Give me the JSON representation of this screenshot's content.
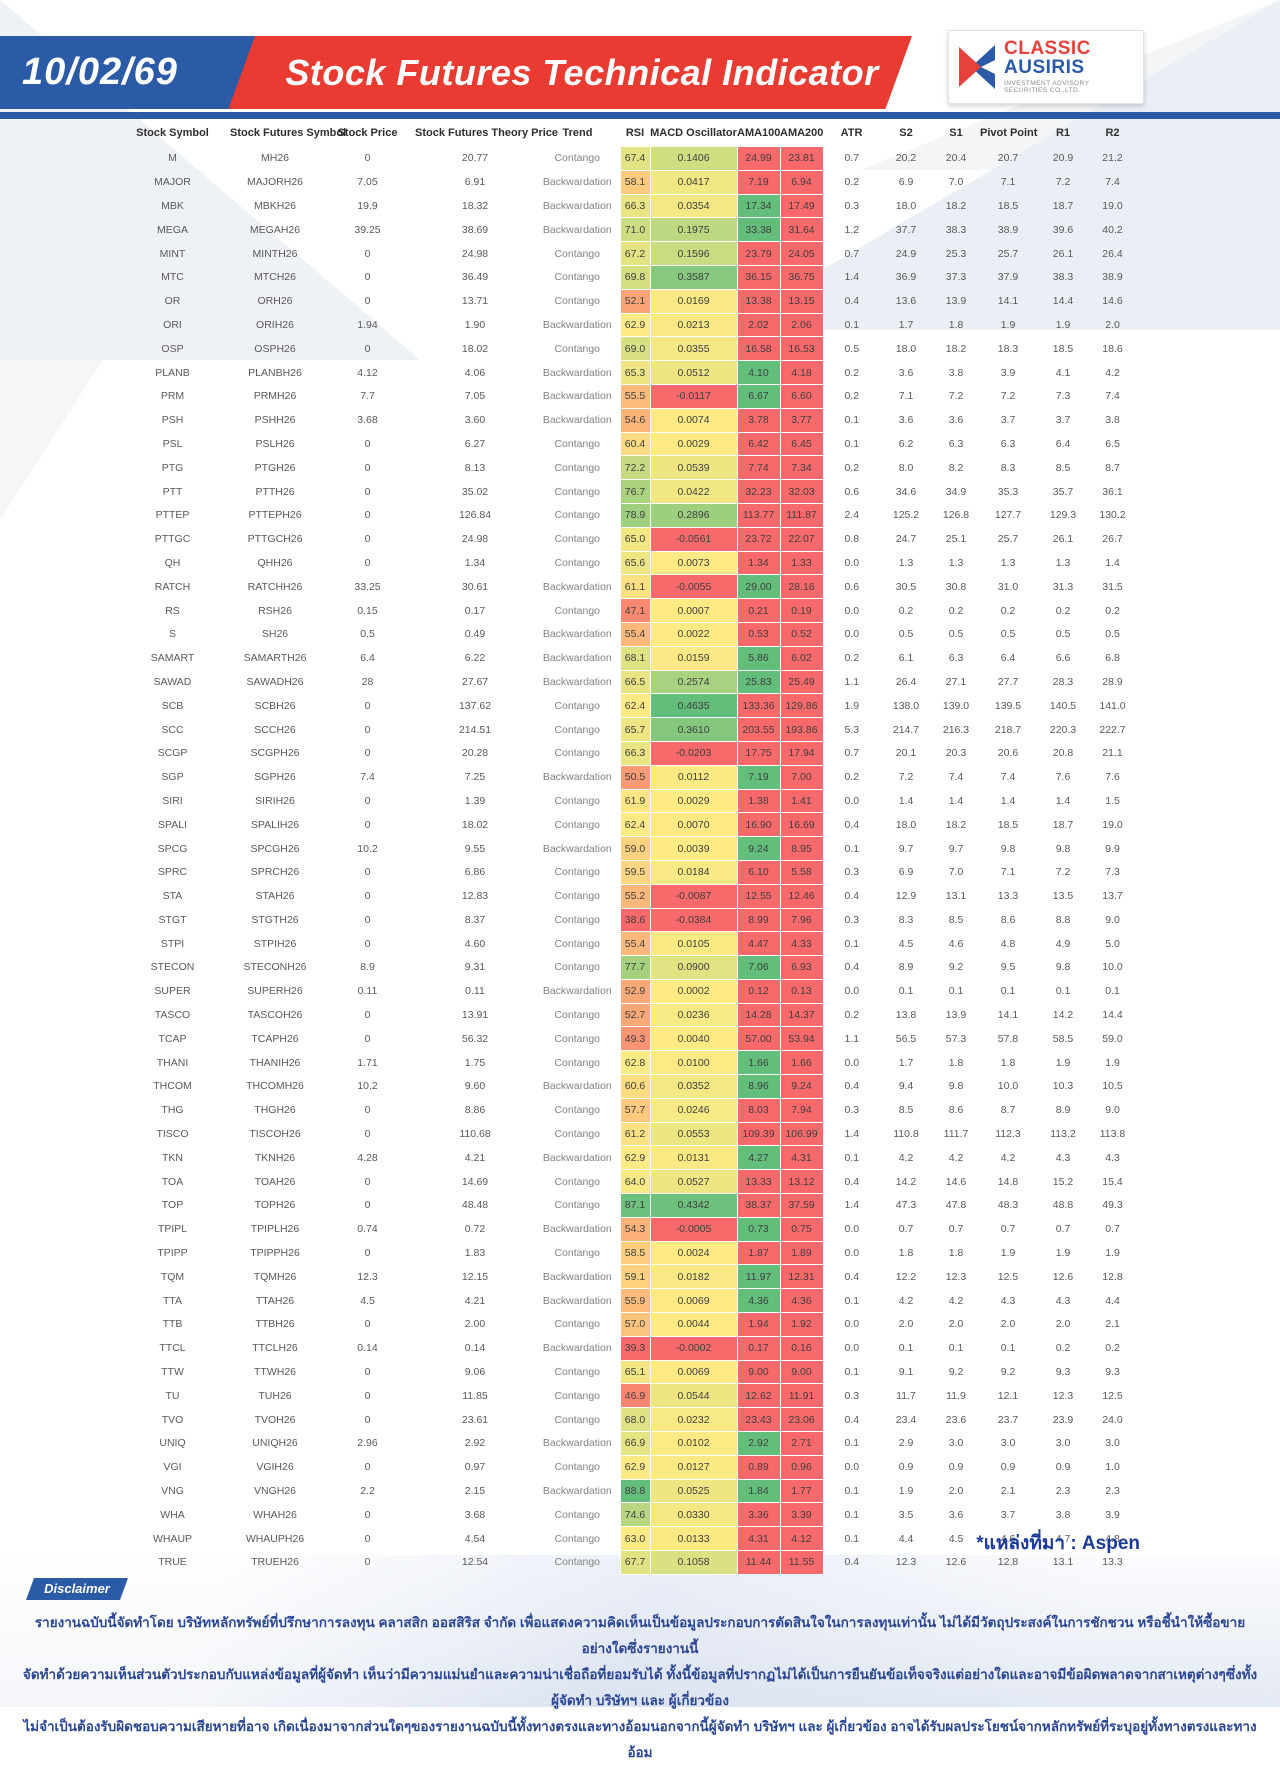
{
  "header": {
    "date": "10/02/69",
    "title": "Stock Futures Technical Indicator",
    "logo": {
      "brand_primary": "CLASSIC",
      "brand_secondary": "AUSIRIS",
      "caption": "INVESTMENT ADVISORY SECURITIES CO.,LTD."
    }
  },
  "colors": {
    "header_blue": "#2B5AA7",
    "header_red": "#E93B32",
    "scale_red": "#F8696B",
    "scale_yellow": "#FFEB84",
    "scale_green": "#63BE7B",
    "note_blue": "#1B3A99",
    "disclaimer_blue": "#2B4693"
  },
  "table": {
    "columns": [
      "Stock Symbol",
      "Stock Futures Symbol",
      "Stock Price",
      "Stock Futures Theory Price",
      "Trend",
      "RSI",
      "MACD Oscillator",
      "AMA100",
      "AMA200",
      "ATR",
      "S2",
      "S1",
      "Pivot Point",
      "R1",
      "R2"
    ],
    "rows": [
      [
        "M",
        "MH26",
        "0",
        "20.77",
        "Contango",
        "67.4",
        "0.1406",
        "24.99",
        "23.81",
        "0.7",
        "20.2",
        "20.4",
        "20.7",
        "20.9",
        "21.2",
        "rr"
      ],
      [
        "MAJOR",
        "MAJORH26",
        "7.05",
        "6.91",
        "Backwardation",
        "58.1",
        "0.0417",
        "7.19",
        "6.94",
        "0.2",
        "6.9",
        "7.0",
        "7.1",
        "7.2",
        "7.4",
        "rr"
      ],
      [
        "MBK",
        "MBKH26",
        "19.9",
        "18.32",
        "Backwardation",
        "66.3",
        "0.0354",
        "17.34",
        "17.49",
        "0.3",
        "18.0",
        "18.2",
        "18.5",
        "18.7",
        "19.0",
        "gr"
      ],
      [
        "MEGA",
        "MEGAH26",
        "39.25",
        "38.69",
        "Backwardation",
        "71.0",
        "0.1975",
        "33.38",
        "31.64",
        "1.2",
        "37.7",
        "38.3",
        "38.9",
        "39.6",
        "40.2",
        "gr"
      ],
      [
        "MINT",
        "MINTH26",
        "0",
        "24.98",
        "Contango",
        "67.2",
        "0.1596",
        "23.79",
        "24.05",
        "0.7",
        "24.9",
        "25.3",
        "25.7",
        "26.1",
        "26.4",
        "rr"
      ],
      [
        "MTC",
        "MTCH26",
        "0",
        "36.49",
        "Contango",
        "69.8",
        "0.3587",
        "36.15",
        "36.75",
        "1.4",
        "36.9",
        "37.3",
        "37.9",
        "38.3",
        "38.9",
        "rr"
      ],
      [
        "OR",
        "ORH26",
        "0",
        "13.71",
        "Contango",
        "52.1",
        "0.0169",
        "13.38",
        "13.15",
        "0.4",
        "13.6",
        "13.9",
        "14.1",
        "14.4",
        "14.6",
        "rr"
      ],
      [
        "ORI",
        "ORIH26",
        "1.94",
        "1.90",
        "Backwardation",
        "62.9",
        "0.0213",
        "2.02",
        "2.06",
        "0.1",
        "1.7",
        "1.8",
        "1.9",
        "1.9",
        "2.0",
        "rr"
      ],
      [
        "OSP",
        "OSPH26",
        "0",
        "18.02",
        "Contango",
        "69.0",
        "0.0355",
        "16.58",
        "16.53",
        "0.5",
        "18.0",
        "18.2",
        "18.3",
        "18.5",
        "18.6",
        "rr"
      ],
      [
        "PLANB",
        "PLANBH26",
        "4.12",
        "4.06",
        "Backwardation",
        "65.3",
        "0.0512",
        "4.10",
        "4.18",
        "0.2",
        "3.6",
        "3.8",
        "3.9",
        "4.1",
        "4.2",
        "gr"
      ],
      [
        "PRM",
        "PRMH26",
        "7.7",
        "7.05",
        "Backwardation",
        "55.5",
        "-0.0117",
        "6.67",
        "6.60",
        "0.2",
        "7.1",
        "7.2",
        "7.2",
        "7.3",
        "7.4",
        "gr"
      ],
      [
        "PSH",
        "PSHH26",
        "3.68",
        "3.60",
        "Backwardation",
        "54.6",
        "0.0074",
        "3.78",
        "3.77",
        "0.1",
        "3.6",
        "3.6",
        "3.7",
        "3.7",
        "3.8",
        "rr"
      ],
      [
        "PSL",
        "PSLH26",
        "0",
        "6.27",
        "Contango",
        "60.4",
        "0.0029",
        "6.42",
        "6.45",
        "0.1",
        "6.2",
        "6.3",
        "6.3",
        "6.4",
        "6.5",
        "rr"
      ],
      [
        "PTG",
        "PTGH26",
        "0",
        "8.13",
        "Contango",
        "72.2",
        "0.0539",
        "7.74",
        "7.34",
        "0.2",
        "8.0",
        "8.2",
        "8.3",
        "8.5",
        "8.7",
        "rr"
      ],
      [
        "PTT",
        "PTTH26",
        "0",
        "35.02",
        "Contango",
        "76.7",
        "0.0422",
        "32.23",
        "32.03",
        "0.6",
        "34.6",
        "34.9",
        "35.3",
        "35.7",
        "36.1",
        "rr"
      ],
      [
        "PTTEP",
        "PTTEPH26",
        "0",
        "126.84",
        "Contango",
        "78.9",
        "0.2896",
        "113.77",
        "111.87",
        "2.4",
        "125.2",
        "126.8",
        "127.7",
        "129.3",
        "130.2",
        "rr"
      ],
      [
        "PTTGC",
        "PTTGCH26",
        "0",
        "24.98",
        "Contango",
        "65.0",
        "-0.0561",
        "23.72",
        "22.07",
        "0.8",
        "24.7",
        "25.1",
        "25.7",
        "26.1",
        "26.7",
        "rr"
      ],
      [
        "QH",
        "QHH26",
        "0",
        "1.34",
        "Contango",
        "65.6",
        "0.0073",
        "1.34",
        "1.33",
        "0.0",
        "1.3",
        "1.3",
        "1.3",
        "1.3",
        "1.4",
        "rr"
      ],
      [
        "RATCH",
        "RATCHH26",
        "33.25",
        "30.61",
        "Backwardation",
        "61.1",
        "-0.0055",
        "29.00",
        "28.16",
        "0.6",
        "30.5",
        "30.8",
        "31.0",
        "31.3",
        "31.5",
        "gr"
      ],
      [
        "RS",
        "RSH26",
        "0.15",
        "0.17",
        "Contango",
        "47.1",
        "0.0007",
        "0.21",
        "0.19",
        "0.0",
        "0.2",
        "0.2",
        "0.2",
        "0.2",
        "0.2",
        "rr"
      ],
      [
        "S",
        "SH26",
        "0.5",
        "0.49",
        "Backwardation",
        "55.4",
        "0.0022",
        "0.53",
        "0.52",
        "0.0",
        "0.5",
        "0.5",
        "0.5",
        "0.5",
        "0.5",
        "rr"
      ],
      [
        "SAMART",
        "SAMARTH26",
        "6.4",
        "6.22",
        "Backwardation",
        "68.1",
        "0.0159",
        "5.86",
        "6.02",
        "0.2",
        "6.1",
        "6.3",
        "6.4",
        "6.6",
        "6.8",
        "gr"
      ],
      [
        "SAWAD",
        "SAWADH26",
        "28",
        "27.67",
        "Backwardation",
        "66.5",
        "0.2574",
        "25.83",
        "25.49",
        "1.1",
        "26.4",
        "27.1",
        "27.7",
        "28.3",
        "28.9",
        "gr"
      ],
      [
        "SCB",
        "SCBH26",
        "0",
        "137.62",
        "Contango",
        "62.4",
        "0.4635",
        "133.36",
        "129.86",
        "1.9",
        "138.0",
        "139.0",
        "139.5",
        "140.5",
        "141.0",
        "rr"
      ],
      [
        "SCC",
        "SCCH26",
        "0",
        "214.51",
        "Contango",
        "65.7",
        "0.3610",
        "203.55",
        "193.86",
        "5.3",
        "214.7",
        "216.3",
        "218.7",
        "220.3",
        "222.7",
        "rr"
      ],
      [
        "SCGP",
        "SCGPH26",
        "0",
        "20.28",
        "Contango",
        "66.3",
        "-0.0203",
        "17.75",
        "17.94",
        "0.7",
        "20.1",
        "20.3",
        "20.6",
        "20.8",
        "21.1",
        "rr"
      ],
      [
        "SGP",
        "SGPH26",
        "7.4",
        "7.25",
        "Backwardation",
        "50.5",
        "0.0112",
        "7.19",
        "7.00",
        "0.2",
        "7.2",
        "7.4",
        "7.4",
        "7.6",
        "7.6",
        "gr"
      ],
      [
        "SIRI",
        "SIRIH26",
        "0",
        "1.39",
        "Contango",
        "61.9",
        "0.0029",
        "1.38",
        "1.41",
        "0.0",
        "1.4",
        "1.4",
        "1.4",
        "1.4",
        "1.5",
        "rr"
      ],
      [
        "SPALI",
        "SPALIH26",
        "0",
        "18.02",
        "Contango",
        "62.4",
        "0.0070",
        "16.90",
        "16.69",
        "0.4",
        "18.0",
        "18.2",
        "18.5",
        "18.7",
        "19.0",
        "rr"
      ],
      [
        "SPCG",
        "SPCGH26",
        "10.2",
        "9.55",
        "Backwardation",
        "59.0",
        "0.0039",
        "9.24",
        "8.95",
        "0.1",
        "9.7",
        "9.7",
        "9.8",
        "9.8",
        "9.9",
        "gr"
      ],
      [
        "SPRC",
        "SPRCH26",
        "0",
        "6.86",
        "Contango",
        "59.5",
        "0.0184",
        "6.10",
        "5.58",
        "0.3",
        "6.9",
        "7.0",
        "7.1",
        "7.2",
        "7.3",
        "rr"
      ],
      [
        "STA",
        "STAH26",
        "0",
        "12.83",
        "Contango",
        "55.2",
        "-0.0087",
        "12.55",
        "12.46",
        "0.4",
        "12.9",
        "13.1",
        "13.3",
        "13.5",
        "13.7",
        "rr"
      ],
      [
        "STGT",
        "STGTH26",
        "0",
        "8.37",
        "Contango",
        "38.6",
        "-0.0384",
        "8.99",
        "7.96",
        "0.3",
        "8.3",
        "8.5",
        "8.6",
        "8.8",
        "9.0",
        "rr"
      ],
      [
        "STPI",
        "STPIH26",
        "0",
        "4.60",
        "Contango",
        "55.4",
        "0.0105",
        "4.47",
        "4.33",
        "0.1",
        "4.5",
        "4.6",
        "4.8",
        "4.9",
        "5.0",
        "rr"
      ],
      [
        "STECON",
        "STECONH26",
        "8.9",
        "9.31",
        "Contango",
        "77.7",
        "0.0900",
        "7.06",
        "6.93",
        "0.4",
        "8.9",
        "9.2",
        "9.5",
        "9.8",
        "10.0",
        "gr"
      ],
      [
        "SUPER",
        "SUPERH26",
        "0.11",
        "0.11",
        "Backwardation",
        "52.9",
        "0.0002",
        "0.12",
        "0.13",
        "0.0",
        "0.1",
        "0.1",
        "0.1",
        "0.1",
        "0.1",
        "rr"
      ],
      [
        "TASCO",
        "TASCOH26",
        "0",
        "13.91",
        "Contango",
        "52.7",
        "0.0236",
        "14.28",
        "14.37",
        "0.2",
        "13.8",
        "13.9",
        "14.1",
        "14.2",
        "14.4",
        "rr"
      ],
      [
        "TCAP",
        "TCAPH26",
        "0",
        "56.32",
        "Contango",
        "49.3",
        "0.0040",
        "57.00",
        "53.94",
        "1.1",
        "56.5",
        "57.3",
        "57.8",
        "58.5",
        "59.0",
        "rr"
      ],
      [
        "THANI",
        "THANIH26",
        "1.71",
        "1.75",
        "Contango",
        "62.8",
        "0.0100",
        "1.66",
        "1.66",
        "0.0",
        "1.7",
        "1.8",
        "1.8",
        "1.9",
        "1.9",
        "gr"
      ],
      [
        "THCOM",
        "THCOMH26",
        "10.2",
        "9.60",
        "Backwardation",
        "60.6",
        "0.0352",
        "8.96",
        "9.24",
        "0.4",
        "9.4",
        "9.8",
        "10.0",
        "10.3",
        "10.5",
        "gr"
      ],
      [
        "THG",
        "THGH26",
        "0",
        "8.86",
        "Contango",
        "57.7",
        "0.0246",
        "8.03",
        "7.94",
        "0.3",
        "8.5",
        "8.6",
        "8.7",
        "8.9",
        "9.0",
        "rr"
      ],
      [
        "TISCO",
        "TISCOH26",
        "0",
        "110.68",
        "Contango",
        "61.2",
        "0.0553",
        "109.39",
        "106.99",
        "1.4",
        "110.8",
        "111.7",
        "112.3",
        "113.2",
        "113.8",
        "rr"
      ],
      [
        "TKN",
        "TKNH26",
        "4.28",
        "4.21",
        "Backwardation",
        "62.9",
        "0.0131",
        "4.27",
        "4.31",
        "0.1",
        "4.2",
        "4.2",
        "4.2",
        "4.3",
        "4.3",
        "gr"
      ],
      [
        "TOA",
        "TOAH26",
        "0",
        "14.69",
        "Contango",
        "64.0",
        "0.0527",
        "13.33",
        "13.12",
        "0.4",
        "14.2",
        "14.6",
        "14.8",
        "15.2",
        "15.4",
        "rr"
      ],
      [
        "TOP",
        "TOPH26",
        "0",
        "48.48",
        "Contango",
        "87.1",
        "0.4342",
        "38.37",
        "37.59",
        "1.4",
        "47.3",
        "47.8",
        "48.3",
        "48.8",
        "49.3",
        "rr"
      ],
      [
        "TPIPL",
        "TPIPLH26",
        "0.74",
        "0.72",
        "Backwardation",
        "54.3",
        "-0.0005",
        "0.73",
        "0.75",
        "0.0",
        "0.7",
        "0.7",
        "0.7",
        "0.7",
        "0.7",
        "gr"
      ],
      [
        "TPIPP",
        "TPIPPH26",
        "0",
        "1.83",
        "Contango",
        "58.5",
        "0.0024",
        "1.87",
        "1.89",
        "0.0",
        "1.8",
        "1.8",
        "1.9",
        "1.9",
        "1.9",
        "rr"
      ],
      [
        "TQM",
        "TQMH26",
        "12.3",
        "12.15",
        "Backwardation",
        "59.1",
        "0.0182",
        "11.97",
        "12.31",
        "0.4",
        "12.2",
        "12.3",
        "12.5",
        "12.6",
        "12.8",
        "gr"
      ],
      [
        "TTA",
        "TTAH26",
        "4.5",
        "4.21",
        "Backwardation",
        "55.9",
        "0.0069",
        "4.36",
        "4.36",
        "0.1",
        "4.2",
        "4.2",
        "4.3",
        "4.3",
        "4.4",
        "gr"
      ],
      [
        "TTB",
        "TTBH26",
        "0",
        "2.00",
        "Contango",
        "57.0",
        "0.0044",
        "1.94",
        "1.92",
        "0.0",
        "2.0",
        "2.0",
        "2.0",
        "2.0",
        "2.1",
        "rr"
      ],
      [
        "TTCL",
        "TTCLH26",
        "0.14",
        "0.14",
        "Backwardation",
        "39.3",
        "-0.0002",
        "0.17",
        "0.16",
        "0.0",
        "0.1",
        "0.1",
        "0.1",
        "0.2",
        "0.2",
        "rr"
      ],
      [
        "TTW",
        "TTWH26",
        "0",
        "9.06",
        "Contango",
        "65.1",
        "0.0069",
        "9.00",
        "9.00",
        "0.1",
        "9.1",
        "9.2",
        "9.2",
        "9.3",
        "9.3",
        "rr"
      ],
      [
        "TU",
        "TUH26",
        "0",
        "11.85",
        "Contango",
        "46.9",
        "0.0544",
        "12.62",
        "11.91",
        "0.3",
        "11.7",
        "11.9",
        "12.1",
        "12.3",
        "12.5",
        "rr"
      ],
      [
        "TVO",
        "TVOH26",
        "0",
        "23.61",
        "Contango",
        "68.0",
        "0.0232",
        "23.43",
        "23.06",
        "0.4",
        "23.4",
        "23.6",
        "23.7",
        "23.9",
        "24.0",
        "rr"
      ],
      [
        "UNIQ",
        "UNIQH26",
        "2.96",
        "2.92",
        "Backwardation",
        "66.9",
        "0.0102",
        "2.92",
        "2.71",
        "0.1",
        "2.9",
        "3.0",
        "3.0",
        "3.0",
        "3.0",
        "gr"
      ],
      [
        "VGI",
        "VGIH26",
        "0",
        "0.97",
        "Contango",
        "62.9",
        "0.0127",
        "0.89",
        "0.96",
        "0.0",
        "0.9",
        "0.9",
        "0.9",
        "0.9",
        "1.0",
        "rr"
      ],
      [
        "VNG",
        "VNGH26",
        "2.2",
        "2.15",
        "Backwardation",
        "88.8",
        "0.0525",
        "1.84",
        "1.77",
        "0.1",
        "1.9",
        "2.0",
        "2.1",
        "2.3",
        "2.3",
        "gr"
      ],
      [
        "WHA",
        "WHAH26",
        "0",
        "3.68",
        "Contango",
        "74.6",
        "0.0330",
        "3.36",
        "3.39",
        "0.1",
        "3.5",
        "3.6",
        "3.7",
        "3.8",
        "3.9",
        "rr"
      ],
      [
        "WHAUP",
        "WHAUPH26",
        "0",
        "4.54",
        "Contango",
        "63.0",
        "0.0133",
        "4.31",
        "4.12",
        "0.1",
        "4.4",
        "4.5",
        "4.6",
        "4.7",
        "4.8",
        "rr"
      ],
      [
        "TRUE",
        "TRUEH26",
        "0",
        "12.54",
        "Contango",
        "67.7",
        "0.1058",
        "11.44",
        "11.55",
        "0.4",
        "12.3",
        "12.6",
        "12.8",
        "13.1",
        "13.3",
        "rr"
      ]
    ]
  },
  "source_note": "*แหล่งที่มา : Aspen",
  "disclaimer": {
    "label": "Disclaimer",
    "lines": [
      "รายงานฉบับนี้จัดทำโดย บริษัทหลักทรัพย์ที่ปรึกษาการลงทุน คลาสสิก ออสสิริส จำกัด  เพื่อแสดงความคิดเห็นเป็นข้อมูลประกอบการตัดสินใจในการลงทุนเท่านั้น ไม่ได้มีวัตถุประสงค์ในการชักชวน หรือชี้นำให้ซื้อขายอย่างใดซึ่งรายงานนี้",
      "จัดทำด้วยความเห็นส่วนตัวประกอบกับแหล่งข้อมูลที่ผู้จัดทำ เห็นว่ามีความแม่นยำและความน่าเชื่อถือที่ยอมรับได้ ทั้งนี้ข้อมูลที่ปรากฏไม่ได้เป็นการยืนยันข้อเท็จจริงแต่อย่างใดและอาจมีข้อผิดพลาดจากสาเหตุต่างๆซึ่งทั้งผู้จัดทำ  บริษัทฯ  และ  ผู้เกี่ยวข้อง",
      "ไม่จำเป็นต้องรับผิดชอบความเสียหายที่อาจ เกิดเนื่องมาจากส่วนใดๆของรายงานฉบับนี้ทั้งทางตรงและทางอ้อมนอกจากนี้ผู้จัดทำ บริษัทฯ และ ผู้เกี่ยวข้อง  อาจได้รับผลประโยชน์จากหลักทรัพย์ที่ระบุอยู่ทั้งทางตรงและทางอ้อม"
    ]
  }
}
